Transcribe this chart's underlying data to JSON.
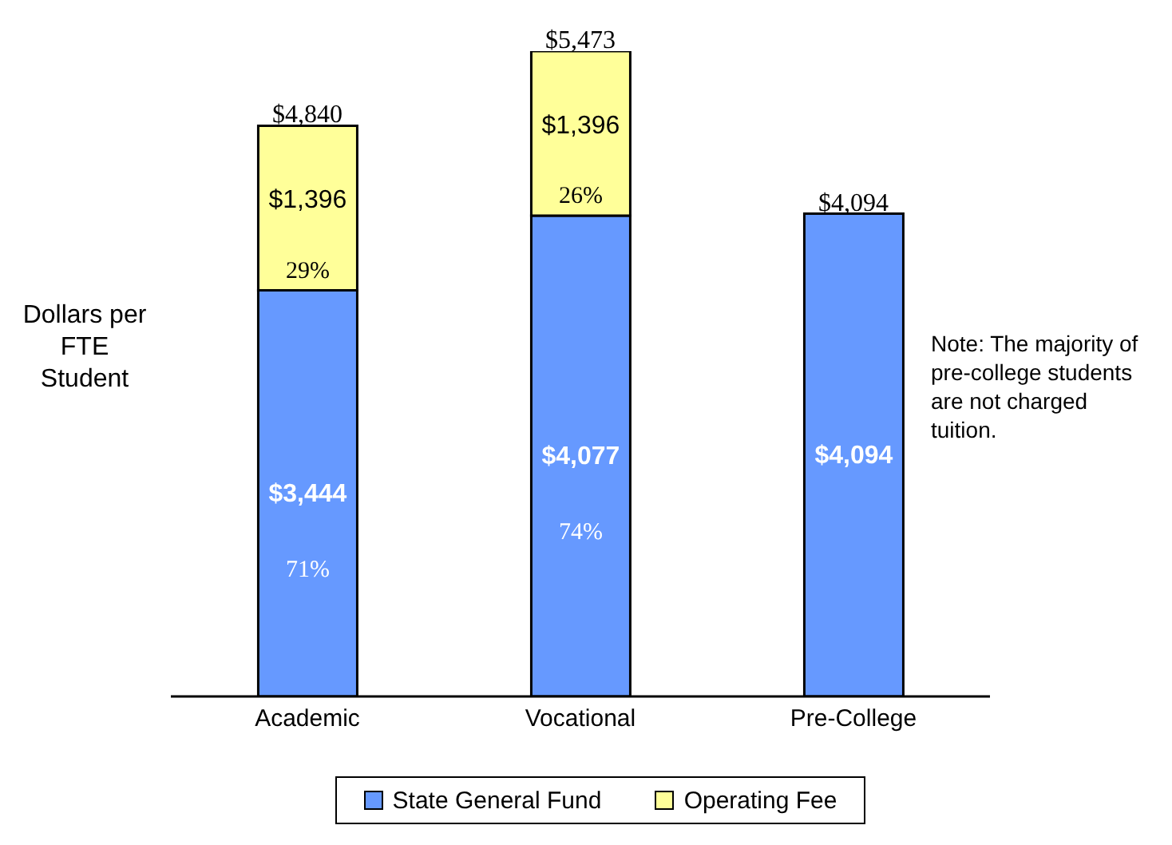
{
  "chart_data": {
    "type": "bar",
    "ylabel": "Dollars per FTE Student",
    "stacked": true,
    "legend": "bottom",
    "categories": [
      "Academic",
      "Vocational",
      "Pre-College"
    ],
    "series": [
      {
        "name": "State General Fund",
        "color": "#6699ff",
        "values": [
          3444,
          4077,
          4094
        ],
        "value_labels": [
          "$3,444",
          "$4,077",
          "$4,094"
        ]
      },
      {
        "name": "Operating Fee",
        "color": "#ffff99",
        "values": [
          1396,
          1396,
          null
        ],
        "value_labels": [
          "$1,396",
          "$1,396",
          null
        ]
      }
    ],
    "totals": [
      "$4,840",
      "$5,473",
      "$4,094"
    ],
    "annotations": [
      "71%",
      "29%",
      "74%",
      "26%",
      "Note: The majority of pre-college students are not charged tuition."
    ]
  }
}
